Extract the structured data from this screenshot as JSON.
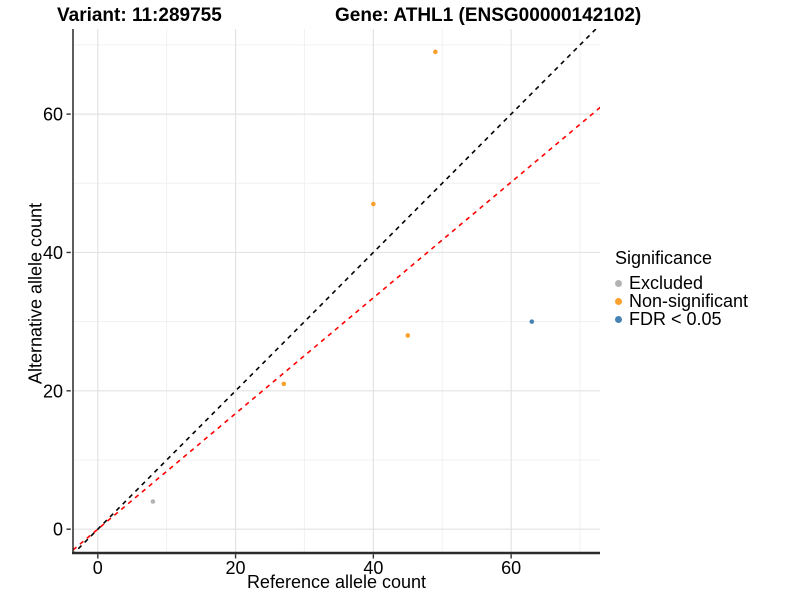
{
  "titles": {
    "variant": "Variant: 11:289755",
    "gene": "Gene: ATHL1 (ENSG00000142102)"
  },
  "chart_data": {
    "type": "scatter",
    "xlabel": "Reference allele count",
    "ylabel": "Alternative allele count",
    "xlim": [
      -3.6,
      72.9
    ],
    "ylim": [
      -3.3,
      72.3
    ],
    "xticks": [
      0,
      20,
      40,
      60
    ],
    "yticks": [
      0,
      20,
      40,
      60
    ],
    "xticks_minor": [
      10,
      30,
      50,
      70
    ],
    "yticks_minor": [
      10,
      30,
      50,
      70
    ],
    "grid": true,
    "legend_position": "right",
    "series": [
      {
        "name": "Excluded",
        "color": "#B3B3B3",
        "points": [
          [
            8,
            4
          ]
        ]
      },
      {
        "name": "Non-significant",
        "color": "#F9A12E",
        "points": [
          [
            27,
            21
          ],
          [
            40,
            47
          ],
          [
            45,
            28
          ],
          [
            49,
            69
          ]
        ]
      },
      {
        "name": "FDR < 0.05",
        "color": "#4682B4",
        "points": [
          [
            63,
            30
          ]
        ]
      }
    ],
    "lines": [
      {
        "name": "identity-line",
        "color": "#000000",
        "dashed": true,
        "slope": 1.0,
        "intercept": 0
      },
      {
        "name": "fit-line",
        "color": "#FF0000",
        "dashed": true,
        "slope": 0.836,
        "intercept": 0
      }
    ]
  },
  "legend": {
    "title": "Significance",
    "items": [
      {
        "label": "Excluded",
        "color": "#B3B3B3"
      },
      {
        "label": "Non-significant",
        "color": "#F9A12E"
      },
      {
        "label": "FDR < 0.05",
        "color": "#4682B4"
      }
    ]
  },
  "style": {
    "grid_major": "#E3E3E3",
    "grid_minor": "#F1F1F1",
    "axis_line": "#2b2b2b",
    "tick_color": "#333333"
  }
}
